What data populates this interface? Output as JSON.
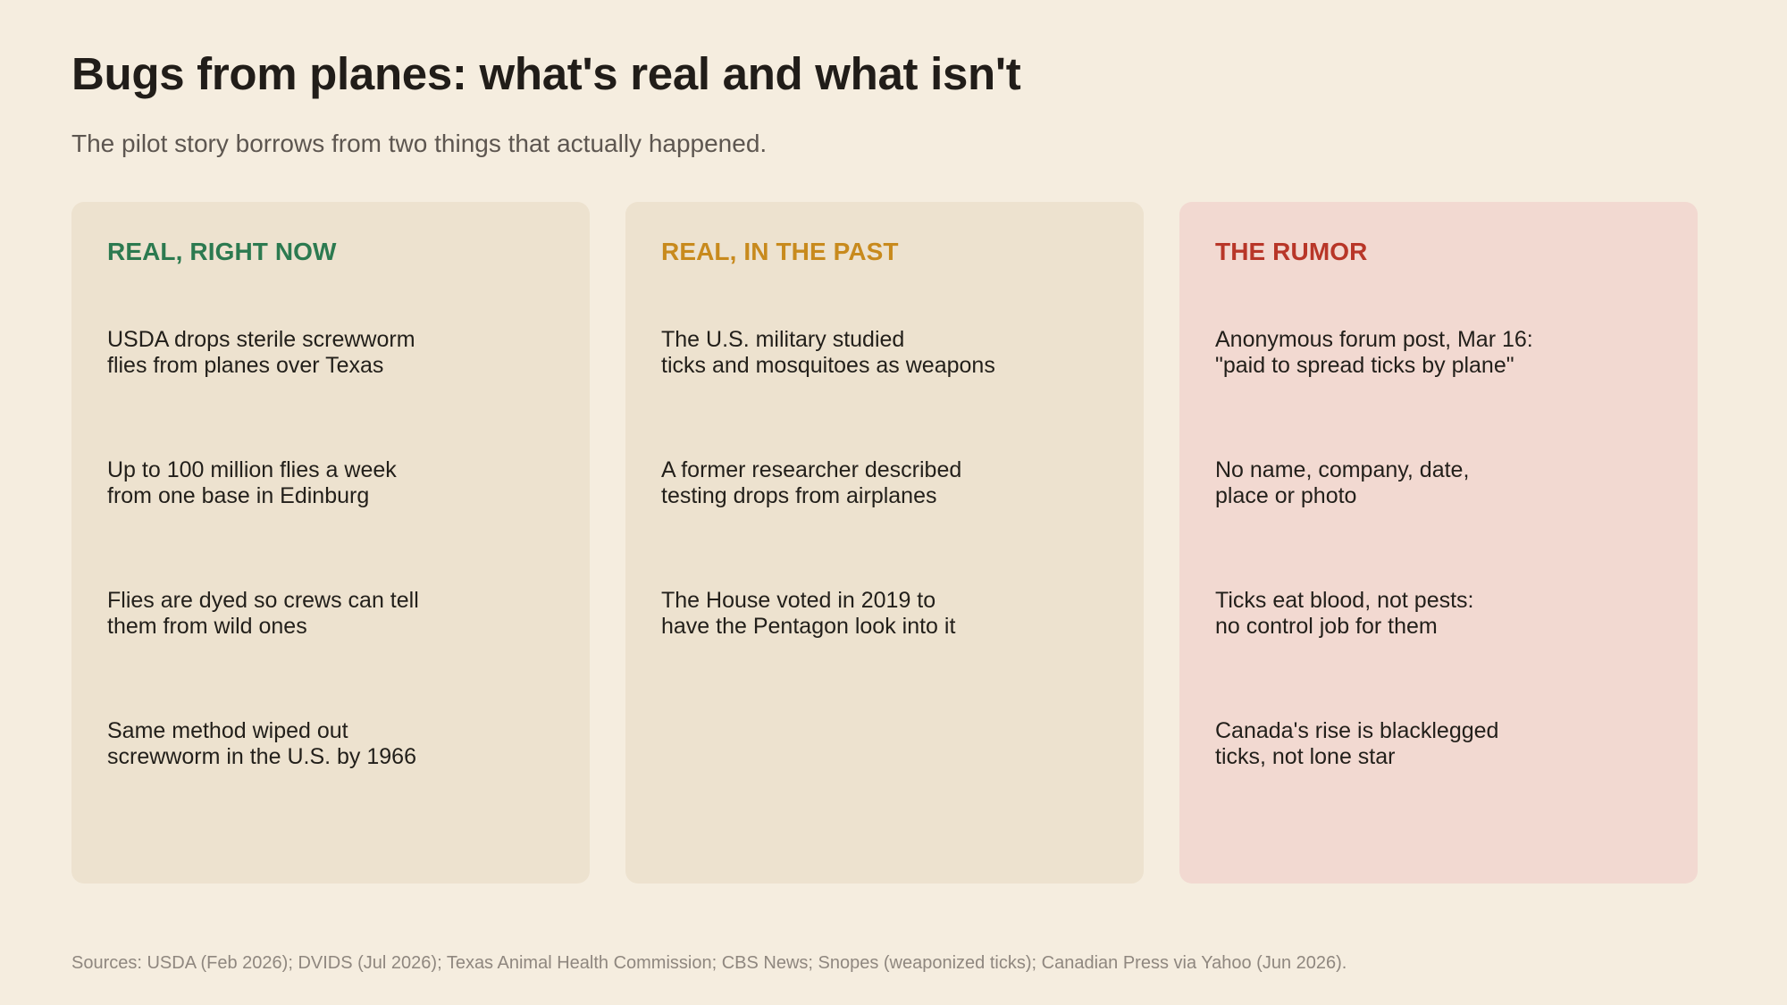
{
  "page": {
    "title": "Bugs from planes: what's real and what isn't",
    "subtitle": "The pilot story borrows from two things that actually happened."
  },
  "colors": {
    "background": "#f5eddf",
    "card_background": "#ede2cf",
    "rumor_card_background": "#f2d9d1",
    "real_now_heading": "#2c7a50",
    "real_past_heading": "#c88a1d",
    "rumor_heading": "#b83628"
  },
  "cards": [
    {
      "heading": "REAL, RIGHT NOW",
      "items": [
        {
          "line1": "USDA drops sterile screwworm",
          "line2": "flies from planes over Texas"
        },
        {
          "line1": "Up to 100 million flies a week",
          "line2": "from one base in Edinburg"
        },
        {
          "line1": "Flies are dyed so crews can tell",
          "line2": "them from wild ones"
        },
        {
          "line1": "Same method wiped out",
          "line2": "screwworm in the U.S. by 1966"
        }
      ]
    },
    {
      "heading": "REAL, IN THE PAST",
      "items": [
        {
          "line1": "The U.S. military studied",
          "line2": "ticks and mosquitoes as weapons"
        },
        {
          "line1": "A former researcher described",
          "line2": "testing drops from airplanes"
        },
        {
          "line1": "The House voted in 2019 to",
          "line2": "have the Pentagon look into it"
        }
      ]
    },
    {
      "heading": "THE RUMOR",
      "items": [
        {
          "line1": "Anonymous forum post, Mar 16:",
          "line2": "\"paid to spread ticks by plane\""
        },
        {
          "line1": "No name, company, date,",
          "line2": "place or photo"
        },
        {
          "line1": "Ticks eat blood, not pests:",
          "line2": "no control job for them"
        },
        {
          "line1": "Canada's rise is blacklegged",
          "line2": "ticks, not lone star"
        }
      ]
    }
  ],
  "footer": {
    "sources": "Sources: USDA (Feb 2026); DVIDS (Jul 2026); Texas Animal Health Commission; CBS News; Snopes (weaponized ticks); Canadian Press via Yahoo (Jun 2026)."
  }
}
